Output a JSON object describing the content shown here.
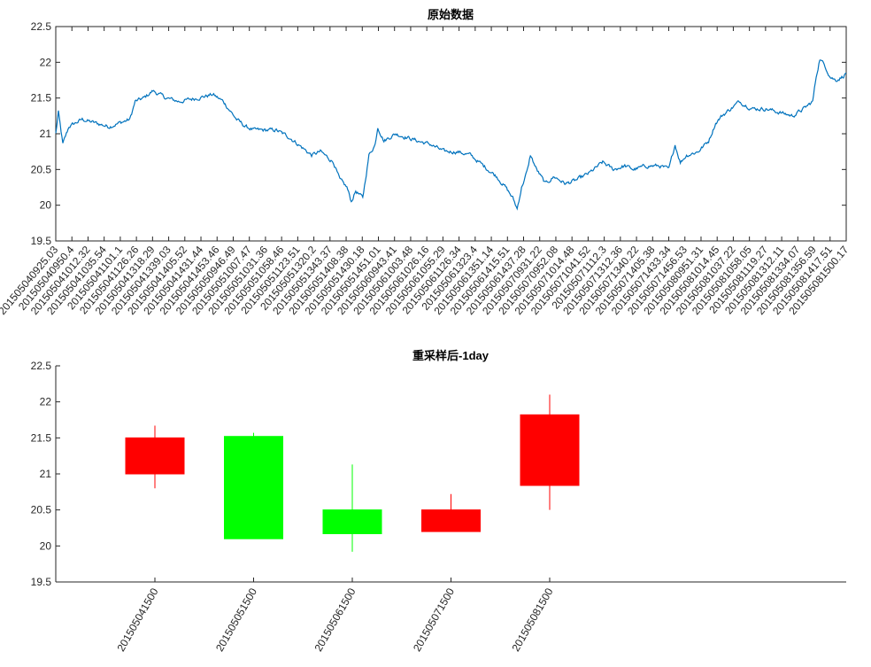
{
  "colors": {
    "line": "#0072bd",
    "up": "#ff0000",
    "down": "#00ff00",
    "axis": "#262626",
    "background": "#ffffff"
  },
  "chart_data": [
    {
      "type": "line",
      "title": "原始数据",
      "xlabel": "",
      "ylabel": "",
      "ylim": [
        19.5,
        22.5
      ],
      "yticks": [
        19.5,
        20,
        20.5,
        21,
        21.5,
        22,
        22.5
      ],
      "grid": false,
      "xtick_labels": [
        "201505040925.03",
        "201505040950.4",
        "201505041012.32",
        "201505041035.54",
        "201505041101.1",
        "201505041126.26",
        "201505041318.29",
        "201505041339.03",
        "201505041405.52",
        "201505041431.44",
        "201505041453.46",
        "201505050946.49",
        "201505051007.47",
        "201505051031.36",
        "201505051058.46",
        "201505051123.51",
        "201505051320.2",
        "201505051343.37",
        "201505051408.38",
        "201505051430.18",
        "201505051451.01",
        "201505060943.41",
        "201505061003.48",
        "201505061026.16",
        "201505061055.29",
        "201505061126.34",
        "201505061323.4",
        "201505061351.14",
        "201505061415.51",
        "201505061437.28",
        "201505070931.22",
        "201505070952.08",
        "201505071014.48",
        "201505071041.52",
        "201505071112.3",
        "201505071312.36",
        "201505071340.22",
        "201505071405.38",
        "201505071433.34",
        "201505071456.53",
        "201505080951.31",
        "201505081014.45",
        "201505081037.22",
        "201505081058.05",
        "201505081119.27",
        "201505081312.11",
        "201505081334.07",
        "201505081356.59",
        "201505081417.51",
        "201505081500.17"
      ],
      "keypoints": [
        [
          0,
          21.0
        ],
        [
          3,
          21.3
        ],
        [
          8,
          20.85
        ],
        [
          15,
          21.1
        ],
        [
          30,
          21.2
        ],
        [
          60,
          21.1
        ],
        [
          84,
          21.2
        ],
        [
          90,
          21.45
        ],
        [
          100,
          21.5
        ],
        [
          110,
          21.6
        ],
        [
          125,
          21.5
        ],
        [
          140,
          21.45
        ],
        [
          160,
          21.5
        ],
        [
          178,
          21.55
        ],
        [
          190,
          21.45
        ],
        [
          205,
          21.2
        ],
        [
          215,
          21.1
        ],
        [
          225,
          21.05
        ],
        [
          250,
          21.05
        ],
        [
          265,
          20.95
        ],
        [
          275,
          20.85
        ],
        [
          290,
          20.7
        ],
        [
          300,
          20.75
        ],
        [
          315,
          20.6
        ],
        [
          322,
          20.35
        ],
        [
          330,
          20.25
        ],
        [
          335,
          20.05
        ],
        [
          340,
          20.2
        ],
        [
          348,
          20.1
        ],
        [
          355,
          20.7
        ],
        [
          362,
          20.85
        ],
        [
          365,
          21.1
        ],
        [
          372,
          20.9
        ],
        [
          385,
          21.0
        ],
        [
          398,
          20.95
        ],
        [
          410,
          20.9
        ],
        [
          425,
          20.85
        ],
        [
          440,
          20.75
        ],
        [
          455,
          20.75
        ],
        [
          470,
          20.7
        ],
        [
          485,
          20.55
        ],
        [
          500,
          20.4
        ],
        [
          510,
          20.25
        ],
        [
          518,
          20.1
        ],
        [
          523,
          19.95
        ],
        [
          528,
          20.25
        ],
        [
          535,
          20.5
        ],
        [
          538,
          20.7
        ],
        [
          545,
          20.5
        ],
        [
          555,
          20.3
        ],
        [
          565,
          20.4
        ],
        [
          578,
          20.3
        ],
        [
          590,
          20.35
        ],
        [
          605,
          20.45
        ],
        [
          620,
          20.6
        ],
        [
          632,
          20.5
        ],
        [
          645,
          20.55
        ],
        [
          655,
          20.5
        ],
        [
          670,
          20.55
        ],
        [
          685,
          20.55
        ],
        [
          695,
          20.5
        ],
        [
          702,
          20.85
        ],
        [
          708,
          20.6
        ],
        [
          715,
          20.7
        ],
        [
          728,
          20.75
        ],
        [
          740,
          20.9
        ],
        [
          748,
          21.15
        ],
        [
          755,
          21.25
        ],
        [
          765,
          21.35
        ],
        [
          775,
          21.45
        ],
        [
          790,
          21.35
        ],
        [
          805,
          21.35
        ],
        [
          820,
          21.3
        ],
        [
          835,
          21.25
        ],
        [
          848,
          21.35
        ],
        [
          858,
          21.45
        ],
        [
          862,
          21.8
        ],
        [
          866,
          22.05
        ],
        [
          872,
          21.95
        ],
        [
          878,
          21.8
        ],
        [
          884,
          21.75
        ],
        [
          892,
          21.8
        ],
        [
          896,
          21.85
        ]
      ],
      "n_points": 897
    },
    {
      "type": "candlestick",
      "title": "重采样后-1day",
      "xlabel": "",
      "ylabel": "",
      "ylim": [
        19.5,
        22.5
      ],
      "yticks": [
        19.5,
        20,
        20.5,
        21,
        21.5,
        22,
        22.5
      ],
      "grid": false,
      "categories": [
        "201505041500",
        "201505051500",
        "201505061500",
        "201505071500",
        "201505081500"
      ],
      "candles": [
        {
          "open": 21.0,
          "high": 21.67,
          "low": 20.8,
          "close": 21.5
        },
        {
          "open": 21.52,
          "high": 21.57,
          "low": 20.1,
          "close": 20.1
        },
        {
          "open": 20.5,
          "high": 21.13,
          "low": 19.92,
          "close": 20.17
        },
        {
          "open": 20.2,
          "high": 20.72,
          "low": 20.2,
          "close": 20.5
        },
        {
          "open": 20.84,
          "high": 22.1,
          "low": 20.5,
          "close": 21.82
        }
      ]
    }
  ]
}
